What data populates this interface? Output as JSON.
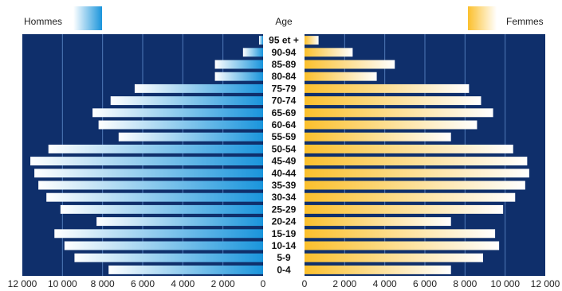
{
  "chart_data": {
    "type": "bar",
    "title": "",
    "center_label": "Age",
    "legend": {
      "left": "Hommes",
      "right": "Femmes"
    },
    "categories": [
      "95 et +",
      "90-94",
      "85-89",
      "80-84",
      "75-79",
      "70-74",
      "65-69",
      "60-64",
      "55-59",
      "50-54",
      "45-49",
      "40-44",
      "35-39",
      "30-34",
      "25-29",
      "20-24",
      "15-19",
      "10-14",
      "5-9",
      "0-4"
    ],
    "series": [
      {
        "name": "Hommes",
        "values": [
          200,
          1000,
          2400,
          2400,
          6400,
          7600,
          8500,
          8200,
          7200,
          10700,
          11600,
          11400,
          11200,
          10800,
          10100,
          8300,
          10400,
          9900,
          9400,
          7700
        ]
      },
      {
        "name": "Femmes",
        "values": [
          700,
          2400,
          4500,
          3600,
          8200,
          8800,
          9400,
          8600,
          7300,
          10400,
          11100,
          11200,
          11000,
          10500,
          9900,
          7300,
          9500,
          9700,
          8900,
          7300
        ]
      }
    ],
    "xlim": [
      0,
      12000
    ],
    "left_ticks": [
      "12 000",
      "10 000",
      "8 000",
      "6 000",
      "4 000",
      "2 000",
      "0"
    ],
    "right_ticks": [
      "0",
      "2 000",
      "4 000",
      "6 000",
      "8 000",
      "10 000",
      "12 000"
    ],
    "grid": true,
    "colors": {
      "panel": "#0f2f6b",
      "male": "#1a95dc",
      "female": "#fbc02d",
      "grid": "#4f79b8"
    }
  }
}
